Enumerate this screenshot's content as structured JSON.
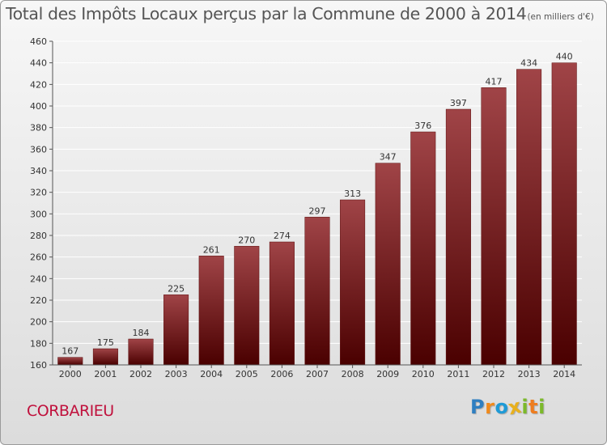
{
  "header": {
    "title": "Total des Impôts Locaux perçus par la Commune de 2000 à 2014",
    "unit": "(en milliers d'€)"
  },
  "commune": {
    "name": "CORBARIEU",
    "color": "#c0103c"
  },
  "logo": {
    "text": "Proxiti",
    "letters": [
      {
        "ch": "P",
        "color": "#2f7fc1"
      },
      {
        "ch": "r",
        "color": "#f08a1c"
      },
      {
        "ch": "o",
        "color": "#1e9ad6"
      },
      {
        "ch": "x",
        "color": "#e8b01c"
      },
      {
        "ch": "i",
        "color": "#7cb92a"
      },
      {
        "ch": "t",
        "color": "#ee7d1f"
      },
      {
        "ch": "i",
        "color": "#7cb92a"
      }
    ]
  },
  "colors": {
    "bar_top": "#a04447",
    "bar_bottom": "#4a0000",
    "bar_edge": "#5a0a0a",
    "axis": "#555555",
    "grid": "#ffffff"
  },
  "chart_data": {
    "type": "bar",
    "title": "Total des Impôts Locaux perçus par la Commune de 2000 à 2014",
    "subtitle": "(en milliers d'€)",
    "xlabel": "",
    "ylabel": "",
    "categories": [
      "2000",
      "2001",
      "2002",
      "2003",
      "2004",
      "2005",
      "2006",
      "2007",
      "2008",
      "2009",
      "2010",
      "2011",
      "2012",
      "2013",
      "2014"
    ],
    "values": [
      167,
      175,
      184,
      225,
      261,
      270,
      274,
      297,
      313,
      347,
      376,
      397,
      417,
      434,
      440
    ],
    "ylim": [
      160,
      460
    ],
    "yticks": [
      160,
      180,
      200,
      220,
      240,
      260,
      280,
      300,
      320,
      340,
      360,
      380,
      400,
      420,
      440,
      460
    ],
    "grid": true,
    "data_labels": true
  }
}
